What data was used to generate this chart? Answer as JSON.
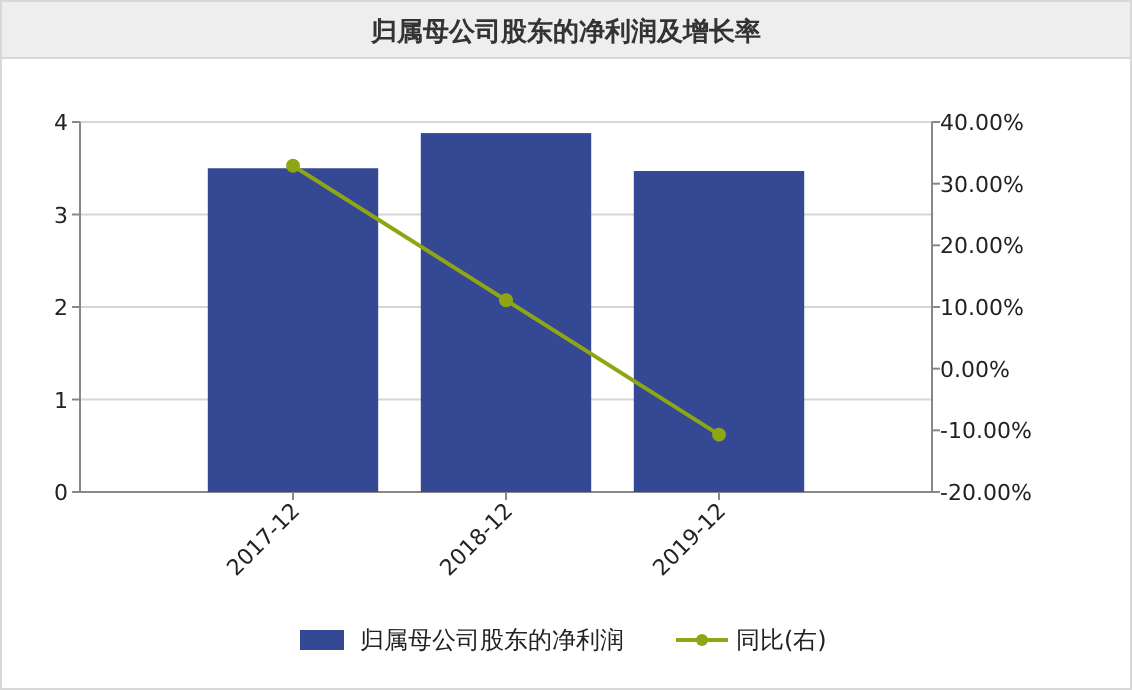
{
  "chart_data": {
    "type": "bar",
    "title": "归属母公司股东的净利润及增长率",
    "categories": [
      "2017-12",
      "2018-12",
      "2019-12"
    ],
    "series": [
      {
        "name": "归属母公司股东的净利润",
        "color": "#344893",
        "values": [
          3.5,
          3.88,
          3.47
        ]
      },
      {
        "name": "同比(右)",
        "type": "line",
        "axis": "y2",
        "color": "#8fa614",
        "marker": "circle",
        "values": [
          32.9,
          11.1,
          -10.7
        ]
      }
    ],
    "ylim": [
      0,
      4
    ],
    "yticks": [
      0,
      1,
      2,
      3,
      4
    ],
    "y2lim": [
      -20,
      40
    ],
    "y2ticks": [
      {
        "value": -20,
        "label": "-20.00%"
      },
      {
        "value": -10,
        "label": "-10.00%"
      },
      {
        "value": 0,
        "label": "0.00%"
      },
      {
        "value": 10,
        "label": "10.00%"
      },
      {
        "value": 20,
        "label": "20.00%"
      },
      {
        "value": 30,
        "label": "30.00%"
      },
      {
        "value": 40,
        "label": "40.00%"
      }
    ],
    "grid": "y",
    "legend": "bottom"
  }
}
